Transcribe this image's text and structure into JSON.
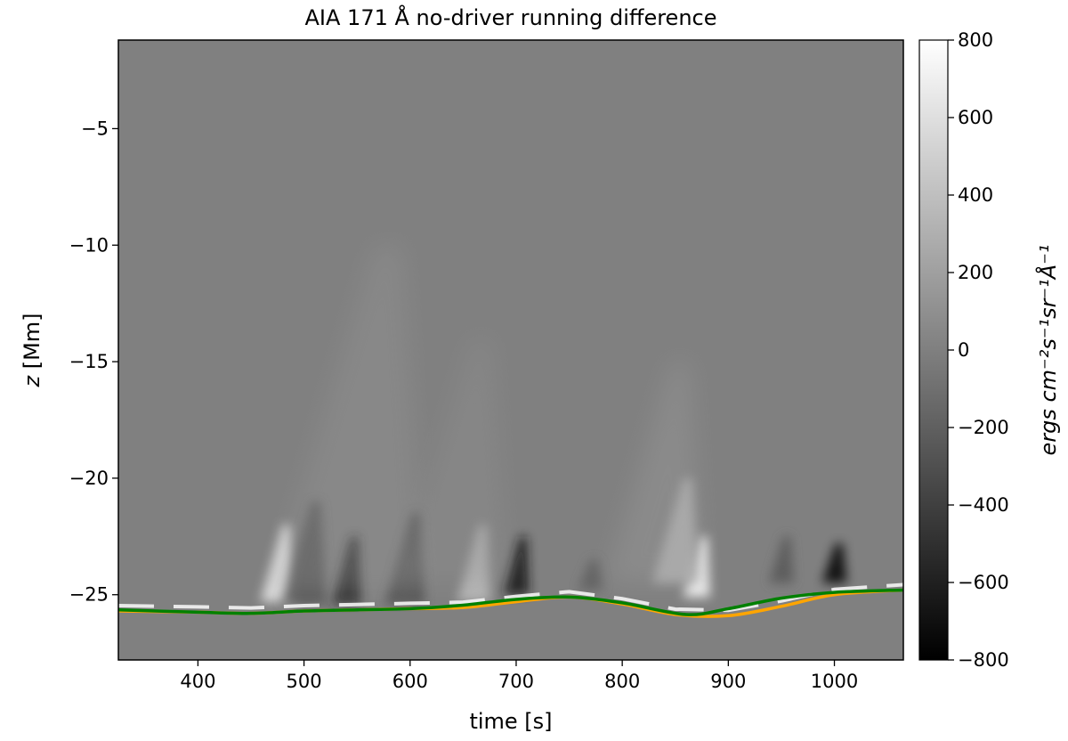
{
  "chart_data": {
    "type": "heatmap",
    "title": "AIA 171 Å no-driver running difference",
    "xlabel": "time [s]",
    "ylabel": "z [Mm]",
    "ylabel_var": "z",
    "ylabel_unit": "[Mm]",
    "xlim": [
      325,
      1065
    ],
    "ylim": [
      -27.8,
      -1.2
    ],
    "xticks": [
      400,
      500,
      600,
      700,
      800,
      900,
      1000
    ],
    "yticks": [
      -5,
      -10,
      -15,
      -20,
      -25
    ],
    "grid": false,
    "colorbar": {
      "label": "ergs cm⁻²s⁻¹sr⁻¹Å⁻¹",
      "range": [
        -800,
        800
      ],
      "ticks": [
        800,
        600,
        400,
        200,
        0,
        -200,
        -400,
        -600,
        -800
      ],
      "colormap": "gray"
    },
    "series": [
      {
        "color": "#ffa500",
        "x": [
          325,
          400,
          450,
          500,
          550,
          600,
          650,
          700,
          750,
          800,
          850,
          900,
          950,
          1000,
          1065
        ],
        "y": [
          -25.7,
          -25.75,
          -25.8,
          -25.7,
          -25.65,
          -25.6,
          -25.55,
          -25.3,
          -25.1,
          -25.4,
          -25.85,
          -25.9,
          -25.5,
          -25.0,
          -24.8
        ]
      },
      {
        "color": "#008000",
        "x": [
          325,
          400,
          450,
          500,
          550,
          600,
          650,
          700,
          750,
          800,
          860,
          900,
          950,
          1000,
          1065
        ],
        "y": [
          -25.65,
          -25.75,
          -25.8,
          -25.7,
          -25.65,
          -25.6,
          -25.45,
          -25.2,
          -25.1,
          -25.35,
          -25.85,
          -25.6,
          -25.15,
          -24.9,
          -24.8
        ]
      }
    ],
    "features": [
      {
        "t": 475,
        "z_base": -25.3,
        "z_top": -22.0,
        "value": 700
      },
      {
        "t": 540,
        "z_base": -25.4,
        "z_top": -22.5,
        "value": -600
      },
      {
        "t": 500,
        "z_base": -25.4,
        "z_top": -21.0,
        "value": -300
      },
      {
        "t": 595,
        "z_base": -25.4,
        "z_top": -21.5,
        "value": -350
      },
      {
        "t": 660,
        "z_base": -25.3,
        "z_top": -22.0,
        "value": 400
      },
      {
        "t": 700,
        "z_base": -25.0,
        "z_top": -22.5,
        "value": -650
      },
      {
        "t": 870,
        "z_base": -25.1,
        "z_top": -22.5,
        "value": 800
      },
      {
        "t": 1000,
        "z_base": -24.5,
        "z_top": -22.8,
        "value": -800
      },
      {
        "t": 540,
        "z_base": -25.0,
        "z_top": -10.0,
        "value": 150
      },
      {
        "t": 640,
        "z_base": -24.5,
        "z_top": -14.0,
        "value": 120
      },
      {
        "t": 830,
        "z_base": -24.5,
        "z_top": -15.0,
        "value": 200
      },
      {
        "t": 850,
        "z_base": -24.5,
        "z_top": -20.0,
        "value": 300
      },
      {
        "t": 950,
        "z_base": -24.5,
        "z_top": -22.5,
        "value": -250
      },
      {
        "t": 770,
        "z_base": -24.8,
        "z_top": -23.5,
        "value": -200
      }
    ]
  }
}
